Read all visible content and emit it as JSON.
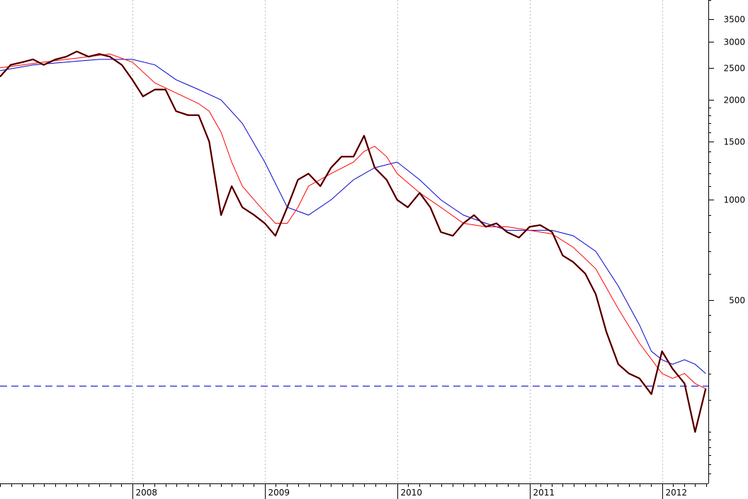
{
  "chart_data": {
    "type": "line",
    "title": "",
    "xlabel": "",
    "ylabel": "",
    "y_scale": "log",
    "ylim": [
      140,
      4000
    ],
    "xlim": [
      2007.0,
      2012.35
    ],
    "x_tick_labels": [
      "2008",
      "2009",
      "2010",
      "2011",
      "2012"
    ],
    "x_tick_values": [
      2008,
      2009,
      2010,
      2011,
      2012
    ],
    "y_tick_values": [
      3500,
      3000,
      2500,
      2000,
      1500,
      1000,
      500
    ],
    "y_tick_labels": [
      "3500",
      "3000",
      "2500",
      "2000",
      "1500",
      "1000",
      "500"
    ],
    "grid_vertical": true,
    "grid_horizontal": false,
    "legend": "none",
    "colors": {
      "price": "#000000",
      "price_highlight": "#cc0000",
      "ma_fast": "#ff0000",
      "ma_slow": "#0000cc",
      "reference": "#0000cc"
    },
    "reference_line": {
      "y": 275,
      "style": "dashed"
    },
    "series": [
      {
        "key": "price",
        "x": [
          2007.0,
          2007.08,
          2007.17,
          2007.25,
          2007.33,
          2007.42,
          2007.5,
          2007.58,
          2007.67,
          2007.75,
          2007.83,
          2007.92,
          2008.0,
          2008.08,
          2008.17,
          2008.25,
          2008.33,
          2008.42,
          2008.5,
          2008.58,
          2008.67,
          2008.75,
          2008.83,
          2008.92,
          2009.0,
          2009.08,
          2009.17,
          2009.25,
          2009.33,
          2009.42,
          2009.5,
          2009.58,
          2009.67,
          2009.75,
          2009.83,
          2009.92,
          2010.0,
          2010.08,
          2010.17,
          2010.25,
          2010.33,
          2010.42,
          2010.5,
          2010.58,
          2010.67,
          2010.75,
          2010.83,
          2010.92,
          2011.0,
          2011.08,
          2011.17,
          2011.25,
          2011.33,
          2011.42,
          2011.5,
          2011.58,
          2011.67,
          2011.75,
          2011.83,
          2011.92,
          2012.0,
          2012.08,
          2012.17,
          2012.25,
          2012.33
        ],
        "values": [
          2350,
          2550,
          2600,
          2650,
          2550,
          2650,
          2700,
          2800,
          2700,
          2750,
          2700,
          2550,
          2300,
          2050,
          2150,
          2150,
          1850,
          1800,
          1800,
          1500,
          900,
          1100,
          950,
          900,
          850,
          780,
          950,
          1150,
          1200,
          1100,
          1250,
          1350,
          1350,
          1560,
          1250,
          1150,
          1000,
          950,
          1050,
          950,
          800,
          780,
          850,
          900,
          830,
          850,
          800,
          770,
          830,
          840,
          800,
          680,
          650,
          600,
          520,
          400,
          320,
          300,
          290,
          260,
          350,
          310,
          280,
          200,
          270
        ]
      },
      {
        "key": "ma_fast",
        "x": [
          2007.0,
          2007.17,
          2007.33,
          2007.5,
          2007.67,
          2007.83,
          2008.0,
          2008.17,
          2008.33,
          2008.5,
          2008.58,
          2008.67,
          2008.75,
          2008.83,
          2008.92,
          2009.0,
          2009.08,
          2009.17,
          2009.25,
          2009.33,
          2009.5,
          2009.67,
          2009.75,
          2009.83,
          2009.92,
          2010.0,
          2010.17,
          2010.33,
          2010.5,
          2010.67,
          2010.83,
          2011.0,
          2011.17,
          2011.33,
          2011.5,
          2011.67,
          2011.83,
          2012.0,
          2012.08,
          2012.17,
          2012.25,
          2012.33
        ],
        "values": [
          2500,
          2550,
          2600,
          2650,
          2700,
          2750,
          2600,
          2250,
          2100,
          1950,
          1850,
          1600,
          1300,
          1100,
          1000,
          920,
          850,
          850,
          950,
          1100,
          1200,
          1300,
          1400,
          1450,
          1350,
          1200,
          1050,
          950,
          850,
          830,
          830,
          810,
          790,
          720,
          620,
          470,
          370,
          300,
          290,
          300,
          280,
          270
        ]
      },
      {
        "key": "ma_slow",
        "x": [
          2007.0,
          2007.25,
          2007.5,
          2007.75,
          2008.0,
          2008.17,
          2008.33,
          2008.5,
          2008.67,
          2008.83,
          2009.0,
          2009.17,
          2009.33,
          2009.5,
          2009.67,
          2009.83,
          2010.0,
          2010.17,
          2010.33,
          2010.5,
          2010.67,
          2010.83,
          2011.0,
          2011.17,
          2011.33,
          2011.5,
          2011.67,
          2011.83,
          2011.92,
          2012.0,
          2012.08,
          2012.17,
          2012.25,
          2012.33
        ],
        "values": [
          2450,
          2550,
          2600,
          2650,
          2650,
          2550,
          2300,
          2150,
          2000,
          1700,
          1300,
          950,
          900,
          1000,
          1150,
          1250,
          1300,
          1150,
          1000,
          900,
          850,
          810,
          810,
          810,
          780,
          700,
          550,
          420,
          350,
          330,
          320,
          330,
          320,
          300
        ]
      }
    ]
  }
}
